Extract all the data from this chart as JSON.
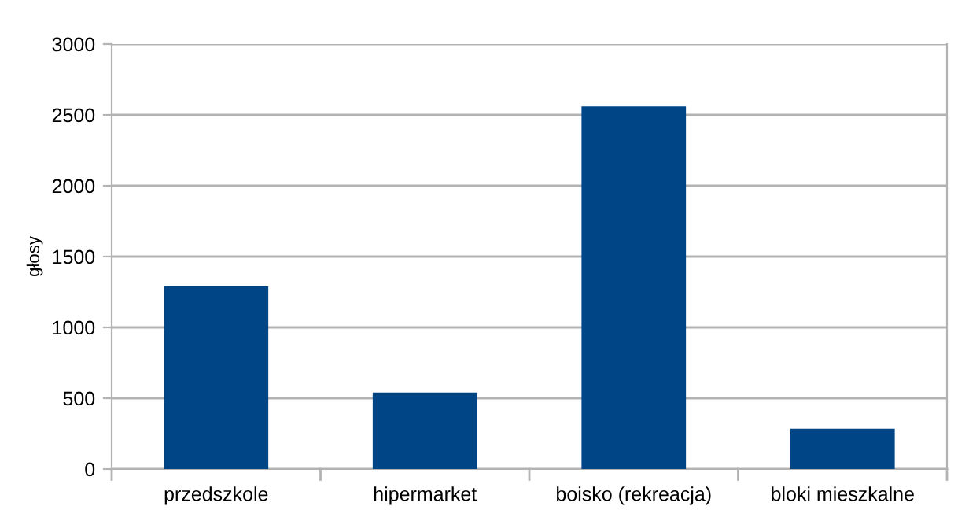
{
  "chart_data": {
    "type": "bar",
    "ylabel": "głosy",
    "categories": [
      "przedszkole",
      "hipermarket",
      "boisko (rekreacja)",
      "bloki mieszkalne"
    ],
    "values": [
      1290,
      540,
      2560,
      285
    ],
    "color": "#004586",
    "ylim": [
      0,
      3000
    ],
    "yticks": [
      0,
      500,
      1000,
      1500,
      2000,
      2500,
      3000
    ],
    "grid": "y",
    "legend": false
  }
}
